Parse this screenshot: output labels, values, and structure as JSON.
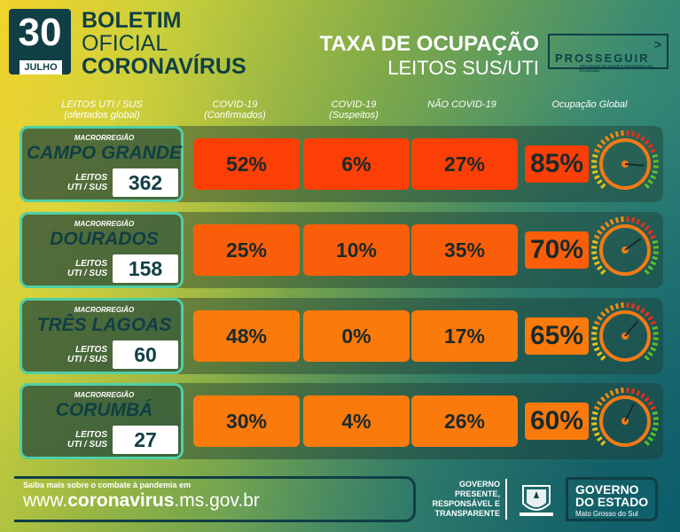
{
  "header": {
    "day": "30",
    "month": "JULHO",
    "title_line1": "BOLETIM",
    "title_line2": "OFICIAL",
    "title_line3": "CORONAVÍRUS",
    "rate_title_line1": "TAXA DE OCUPAÇÃO",
    "rate_title_line2": "LEITOS SUS/UTI",
    "logo": "PROSSEGUIR",
    "logo_arrow": ">",
    "logo_subtitle": "PROGRAMA DE SAÚDE E SEGURANÇA DA ECONOMIA"
  },
  "columns": {
    "beds": "LEITOS UTI / SUS",
    "beds_sub": "(ofertados global)",
    "confirmed": "COVID-19",
    "confirmed_sub": "(Confirmados)",
    "suspected": "COVID-19",
    "suspected_sub": "(Suspeitos)",
    "non_covid": "NÃO COVID-19",
    "global": "Ocupação Global"
  },
  "macro_label": "MACRORREGIÃO",
  "beds_label_line1": "LEITOS",
  "beds_label_line2": "UTI / SUS",
  "regions": [
    {
      "name": "CAMPO GRANDE",
      "beds": "362",
      "confirmed": "52%",
      "suspected": "6%",
      "non_covid": "27%",
      "global": "85%",
      "global_value": 85,
      "cell_color": "#fb3f07",
      "global_color": "#fb3f07"
    },
    {
      "name": "DOURADOS",
      "beds": "158",
      "confirmed": "25%",
      "suspected": "10%",
      "non_covid": "35%",
      "global": "70%",
      "global_value": 70,
      "cell_color": "#fb5e0a",
      "global_color": "#fb5e0a"
    },
    {
      "name": "TRÊS LAGOAS",
      "beds": "60",
      "confirmed": "48%",
      "suspected": "0%",
      "non_covid": "17%",
      "global": "65%",
      "global_value": 65,
      "cell_color": "#fb7a0c",
      "global_color": "#fb7a0c"
    },
    {
      "name": "CORUMBÁ",
      "beds": "27",
      "confirmed": "30%",
      "suspected": "4%",
      "non_covid": "26%",
      "global": "60%",
      "global_value": 60,
      "cell_color": "#fb7a0c",
      "global_color": "#fb7a0c"
    }
  ],
  "footer": {
    "small_text": "Saiba mais sobre o combate à pandemia em",
    "url_prefix": "www.",
    "url_bold": "coronavirus",
    "url_suffix": ".ms.gov.br",
    "gov_motto_1": "GOVERNO",
    "gov_motto_2": "PRESENTE,",
    "gov_motto_3": "RESPONSÁVEL E",
    "gov_motto_4": "TRANSPARENTE",
    "gov_1": "GOVERNO",
    "gov_2": "DO ESTADO",
    "gov_3": "Mato Grosso do Sul"
  }
}
